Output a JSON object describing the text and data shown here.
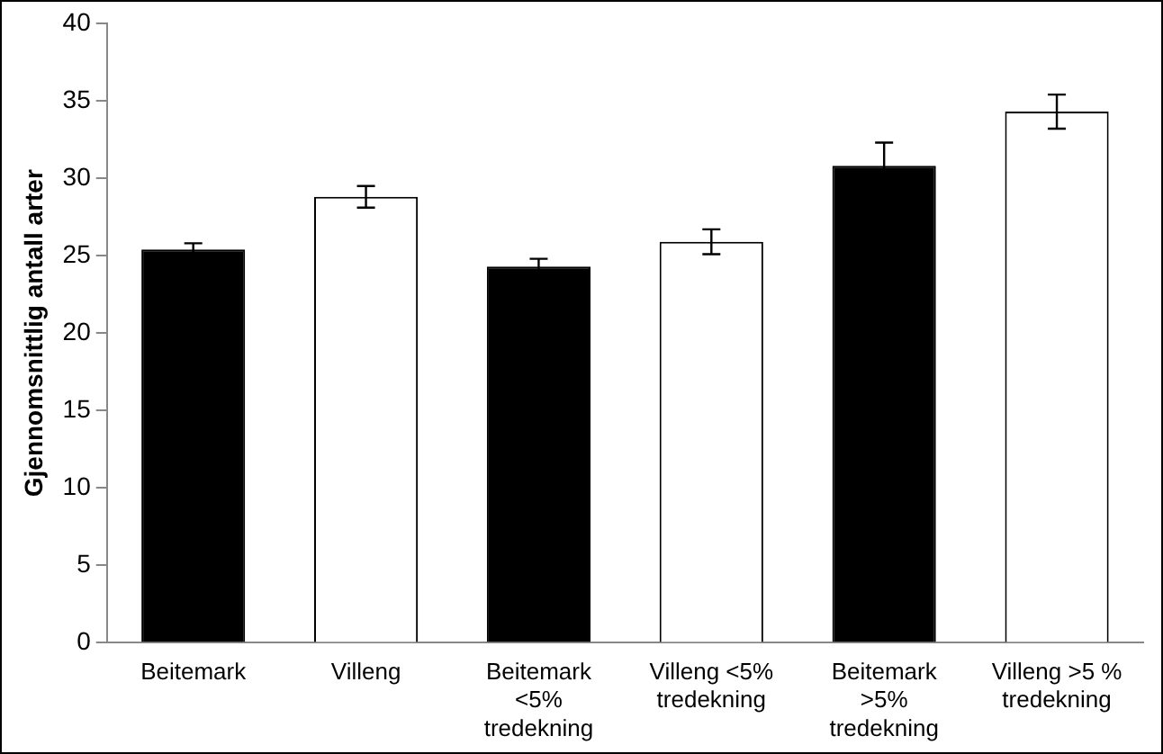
{
  "chart_data": {
    "type": "bar",
    "ylabel": "Gjennomsnittlig antall arter",
    "categories": [
      "Beitemark",
      "Villeng",
      "Beitemark <5% tredekning",
      "Villeng <5% tredekning",
      "Beitemark >5% tredekning",
      "Villeng >5 % tredekning"
    ],
    "values": [
      25.4,
      28.8,
      24.3,
      25.9,
      30.8,
      34.3
    ],
    "errors": [
      0.4,
      0.7,
      0.5,
      0.8,
      1.5,
      1.1
    ],
    "colors": [
      "#000000",
      "#ffffff",
      "#000000",
      "#ffffff",
      "#000000",
      "#ffffff"
    ],
    "ylim": [
      0,
      40
    ],
    "yticks": [
      0,
      5,
      10,
      15,
      20,
      25,
      30,
      35,
      40
    ],
    "grid": false,
    "legend": false
  }
}
